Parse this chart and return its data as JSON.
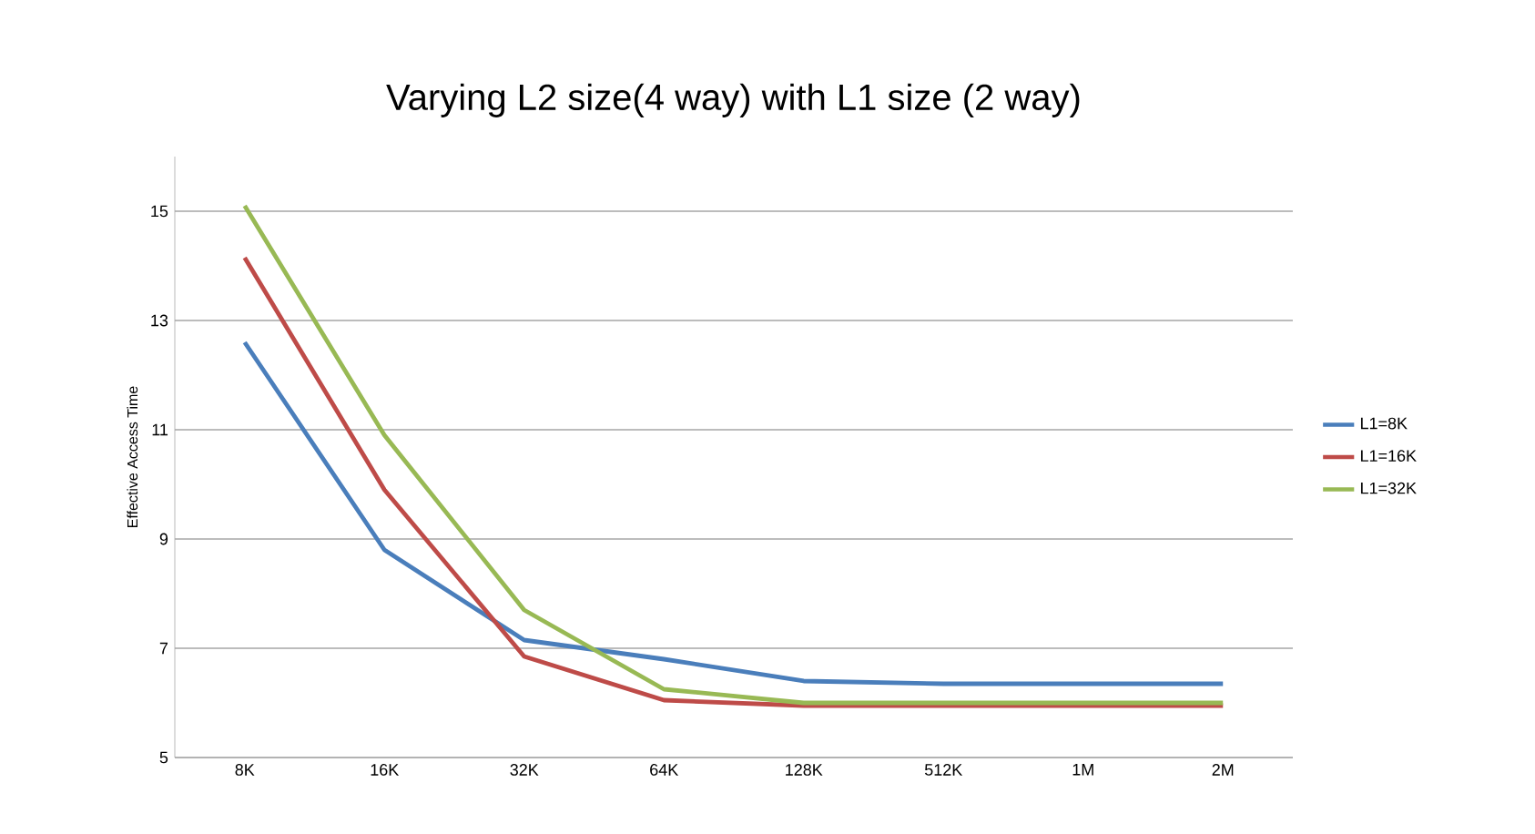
{
  "chart_data": {
    "type": "line",
    "title": "Varying L2 size(4 way) with L1 size (2 way)",
    "ylabel": "Effective Access Time",
    "categories": [
      "8K",
      "16K",
      "32K",
      "64K",
      "128K",
      "512K",
      "1M",
      "2M"
    ],
    "series": [
      {
        "name": "L1=8K",
        "color": "#4a7ebb",
        "values": [
          12.6,
          8.8,
          7.15,
          6.8,
          6.4,
          6.35,
          6.35,
          6.35
        ]
      },
      {
        "name": "L1=16K",
        "color": "#be4b48",
        "values": [
          14.15,
          9.9,
          6.85,
          6.05,
          5.95,
          5.95,
          5.95,
          5.95
        ]
      },
      {
        "name": "L1=32K",
        "color": "#98b954",
        "values": [
          15.1,
          10.9,
          7.7,
          6.25,
          6.0,
          6.0,
          6.0,
          6.0
        ]
      }
    ],
    "ylim": [
      5,
      16
    ],
    "yticks": [
      5,
      7,
      9,
      11,
      13,
      15
    ],
    "grid": "y",
    "legend": "right",
    "marker": "none",
    "line_style": "solid"
  }
}
